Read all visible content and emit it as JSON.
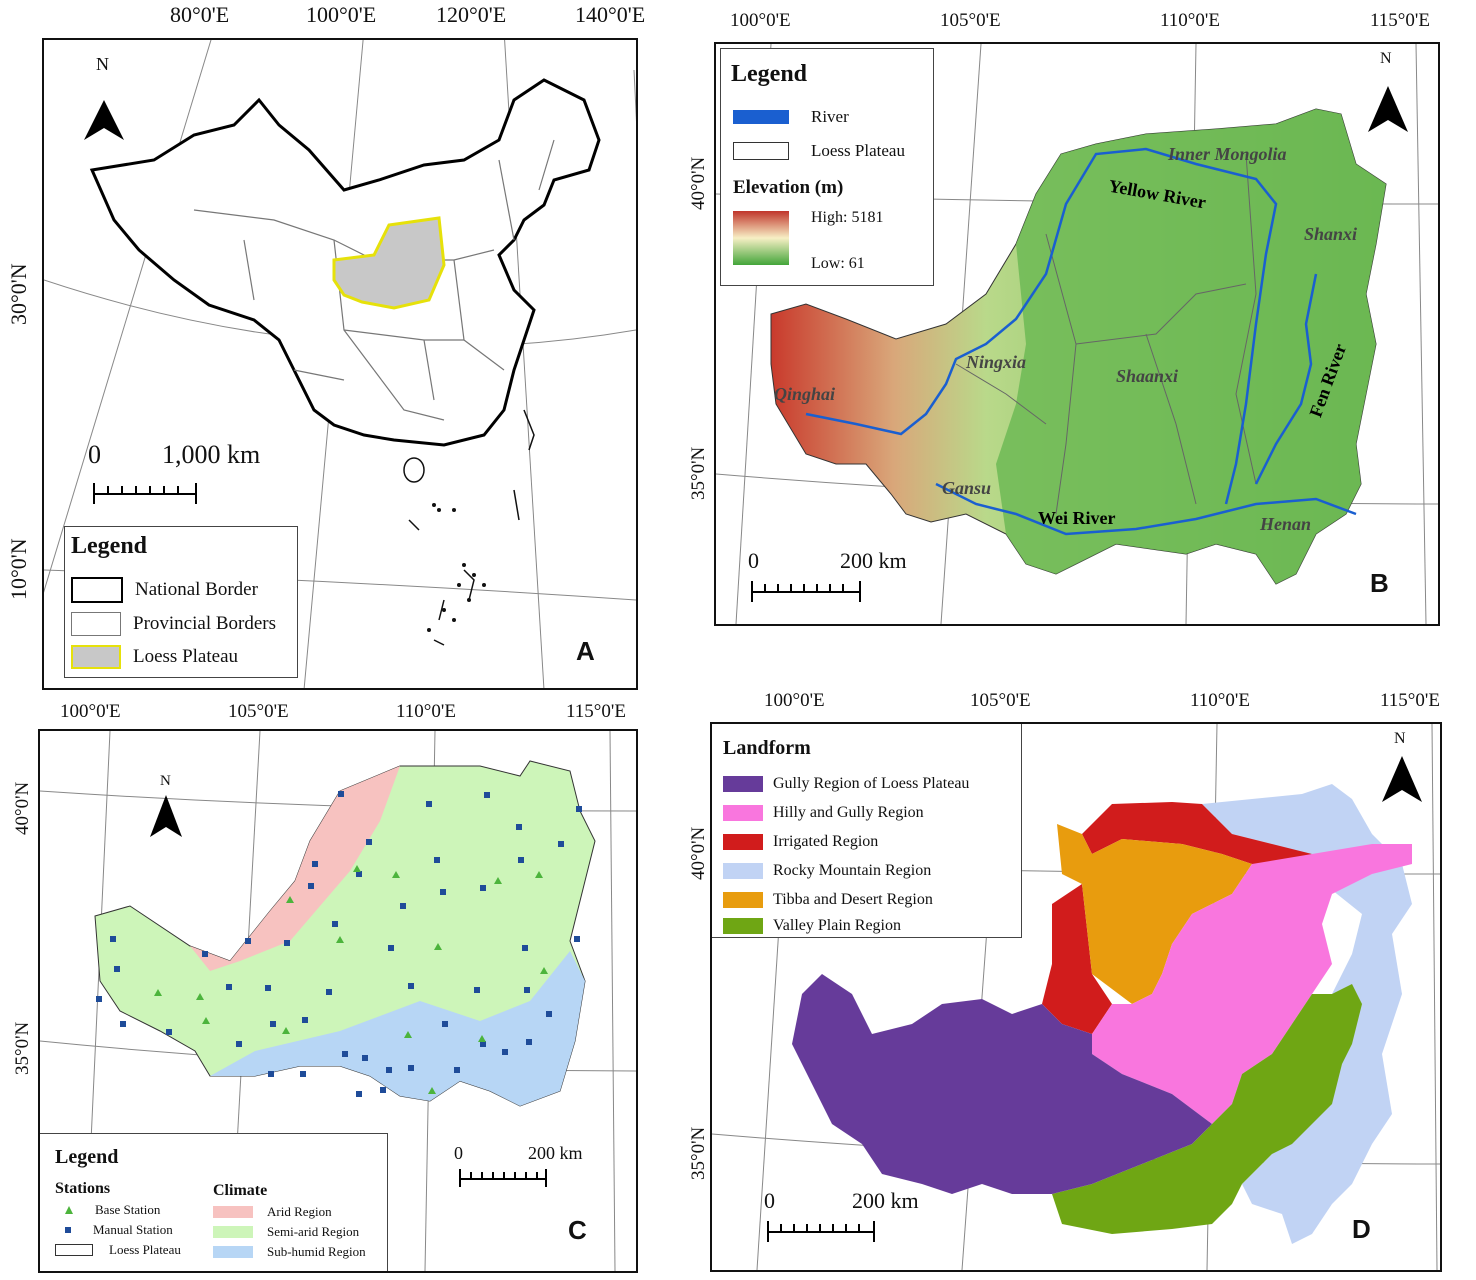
{
  "panelA": {
    "letter": "A",
    "top_ticks": [
      "80°0'E",
      "100°0'E",
      "120°0'E",
      "140°0'E"
    ],
    "left_ticks": [
      "30°0'N",
      "10°0'N"
    ],
    "north": "N",
    "scale": {
      "zero": "0",
      "label": "1,000 km"
    },
    "legend": {
      "title": "Legend",
      "items": [
        {
          "label": "National Border"
        },
        {
          "label": "Provincial Borders"
        },
        {
          "label": "Loess Plateau"
        }
      ]
    }
  },
  "panelB": {
    "letter": "B",
    "top_ticks": [
      "100°0'E",
      "105°0'E",
      "110°0'E",
      "115°0'E"
    ],
    "left_ticks": [
      "40°0'N",
      "35°0'N"
    ],
    "north": "N",
    "scale": {
      "zero": "0",
      "label": "200 km"
    },
    "legend": {
      "title": "Legend",
      "river": "River",
      "plateau": "Loess Plateau",
      "elevation_title": "Elevation (m)",
      "high": "High: 5181",
      "low": "Low: 61"
    },
    "regions": [
      "Inner Mongolia",
      "Shanxi",
      "Ningxia",
      "Shaanxi",
      "Qinghai",
      "Gansu",
      "Henan"
    ],
    "rivers": [
      "Yellow River",
      "Fen River",
      "Wei River"
    ]
  },
  "panelC": {
    "letter": "C",
    "top_ticks": [
      "100°0'E",
      "105°0'E",
      "110°0'E",
      "115°0'E"
    ],
    "left_ticks": [
      "40°0'N",
      "35°0'N"
    ],
    "north": "N",
    "scale": {
      "zero": "0",
      "label": "200 km"
    },
    "legend": {
      "title": "Legend",
      "stations_title": "Stations",
      "base": "Base Station",
      "manual": "Manual Station",
      "plateau": "Loess Plateau",
      "climate_title": "Climate",
      "arid": "Arid Region",
      "semiarid": "Semi-arid Region",
      "subhumid": "Sub-humid Region"
    },
    "colors": {
      "arid": "#f7c2c0",
      "semiarid": "#cdf5b9",
      "subhumid": "#b7d6f5",
      "base": "#4cb43c",
      "manual": "#1f4c99"
    }
  },
  "panelD": {
    "letter": "D",
    "top_ticks": [
      "100°0'E",
      "105°0'E",
      "110°0'E",
      "115°0'E"
    ],
    "left_ticks": [
      "40°0'N",
      "35°0'N"
    ],
    "north": "N",
    "scale": {
      "zero": "0",
      "label": "200 km"
    },
    "legend": {
      "title": "Landform",
      "items": [
        {
          "label": "Gully Region of Loess Plateau",
          "color": "#663b9a"
        },
        {
          "label": "Hilly and Gully Region",
          "color": "#f976de"
        },
        {
          "label": "Irrigated Region",
          "color": "#d11c1c"
        },
        {
          "label": "Rocky Mountain Region",
          "color": "#c1d3f4"
        },
        {
          "label": "Tibba and Desert Region",
          "color": "#e89c0e"
        },
        {
          "label": "Valley Plain Region",
          "color": "#6fa614"
        }
      ]
    }
  }
}
